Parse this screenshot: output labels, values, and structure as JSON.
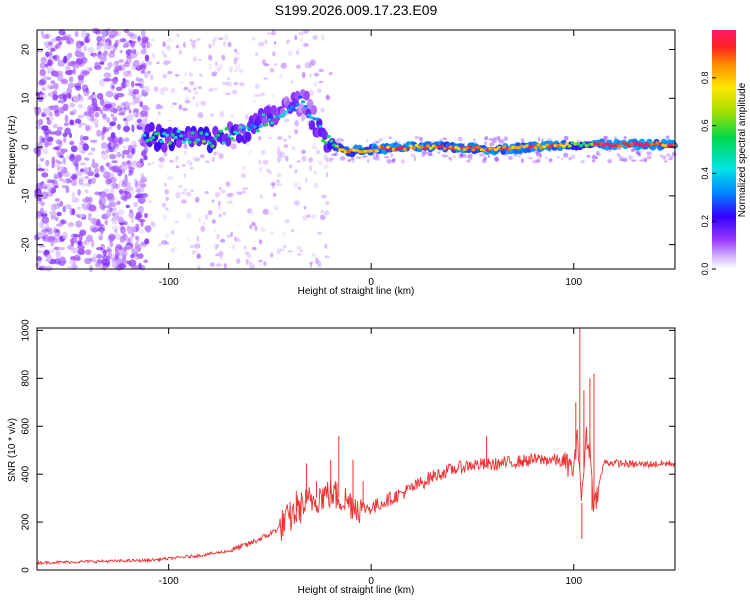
{
  "figure": {
    "title": "S199.2026.009.17.23.E09"
  },
  "chart_data": [
    {
      "type": "heatmap",
      "name": "spectrogram",
      "title": "S199.2026.009.17.23.E09",
      "xlabel": "Height of straight line (km)",
      "ylabel": "Frequency (Hz)",
      "xlim": [
        -165,
        150
      ],
      "ylim": [
        -25,
        24
      ],
      "xticks": [
        -100,
        0,
        100
      ],
      "yticks": [
        -20,
        -10,
        0,
        10,
        20
      ],
      "colorbar": {
        "label": "Normalized spectral amplitude",
        "range": [
          0,
          1
        ],
        "ticks": [
          "0.0",
          "0.2",
          "0.4",
          "0.6",
          "0.8"
        ]
      },
      "ridge": [
        {
          "x": -112,
          "f": 2.5,
          "a": 0.45
        },
        {
          "x": -100,
          "f": 1.5,
          "a": 0.5
        },
        {
          "x": -90,
          "f": 2.0,
          "a": 0.45
        },
        {
          "x": -80,
          "f": 1.5,
          "a": 0.55
        },
        {
          "x": -70,
          "f": 2.5,
          "a": 0.45
        },
        {
          "x": -60,
          "f": 4.0,
          "a": 0.4
        },
        {
          "x": -50,
          "f": 6.0,
          "a": 0.45
        },
        {
          "x": -40,
          "f": 8.5,
          "a": 0.35
        },
        {
          "x": -33,
          "f": 9.5,
          "a": 0.3
        },
        {
          "x": -25,
          "f": 3.0,
          "a": 0.4
        },
        {
          "x": -20,
          "f": 1.0,
          "a": 0.6
        },
        {
          "x": -12,
          "f": -1.0,
          "a": 0.8
        },
        {
          "x": 0,
          "f": -0.5,
          "a": 0.85
        },
        {
          "x": 20,
          "f": 0.0,
          "a": 0.9
        },
        {
          "x": 40,
          "f": 0.0,
          "a": 0.85
        },
        {
          "x": 60,
          "f": -0.5,
          "a": 0.9
        },
        {
          "x": 80,
          "f": 0.0,
          "a": 0.9
        },
        {
          "x": 95,
          "f": 0.5,
          "a": 0.85
        },
        {
          "x": 100,
          "f": 0.5,
          "a": 0.6
        },
        {
          "x": 107,
          "f": 0.5,
          "a": 0.5
        },
        {
          "x": 112,
          "f": 0.5,
          "a": 1.0
        },
        {
          "x": 130,
          "f": 0.5,
          "a": 0.95
        },
        {
          "x": 150,
          "f": 0.5,
          "a": 0.9
        }
      ]
    },
    {
      "type": "line",
      "name": "snr",
      "xlabel": "Height of straight line (km)",
      "ylabel": "SNR (10 * v/v)",
      "xlim": [
        -165,
        150
      ],
      "ylim": [
        0,
        1010
      ],
      "xticks": [
        -100,
        0,
        100
      ],
      "yticks": [
        0,
        200,
        400,
        600,
        800,
        1000
      ],
      "color": "#ee3333",
      "series": [
        {
          "name": "SNR",
          "x": [
            -165,
            -140,
            -110,
            -85,
            -70,
            -60,
            -50,
            -45,
            -40,
            -35,
            -30,
            -25,
            -20,
            -15,
            -10,
            -5,
            0,
            10,
            20,
            30,
            40,
            50,
            60,
            70,
            80,
            90,
            95,
            100,
            102,
            104,
            106,
            108,
            110,
            115,
            130,
            150
          ],
          "y": [
            30,
            35,
            40,
            60,
            80,
            110,
            150,
            180,
            220,
            260,
            290,
            310,
            320,
            300,
            280,
            260,
            260,
            300,
            340,
            390,
            420,
            440,
            440,
            450,
            460,
            460,
            450,
            420,
            560,
            280,
            560,
            500,
            260,
            450,
            440,
            445
          ]
        }
      ],
      "spikes": [
        {
          "x": -37,
          "y": 330
        },
        {
          "x": -32,
          "y": 445
        },
        {
          "x": -27,
          "y": 370
        },
        {
          "x": -20,
          "y": 460
        },
        {
          "x": -16,
          "y": 560
        },
        {
          "x": -9,
          "y": 460
        },
        {
          "x": -4,
          "y": 370
        },
        {
          "x": 2,
          "y": 240
        },
        {
          "x": 57,
          "y": 560
        },
        {
          "x": 101,
          "y": 700
        },
        {
          "x": 103,
          "y": 1010
        },
        {
          "x": 105,
          "y": 750
        },
        {
          "x": 108,
          "y": 800
        },
        {
          "x": 110,
          "y": 820
        },
        {
          "x": 104,
          "y": 130
        },
        {
          "x": 109,
          "y": 250
        }
      ]
    }
  ]
}
